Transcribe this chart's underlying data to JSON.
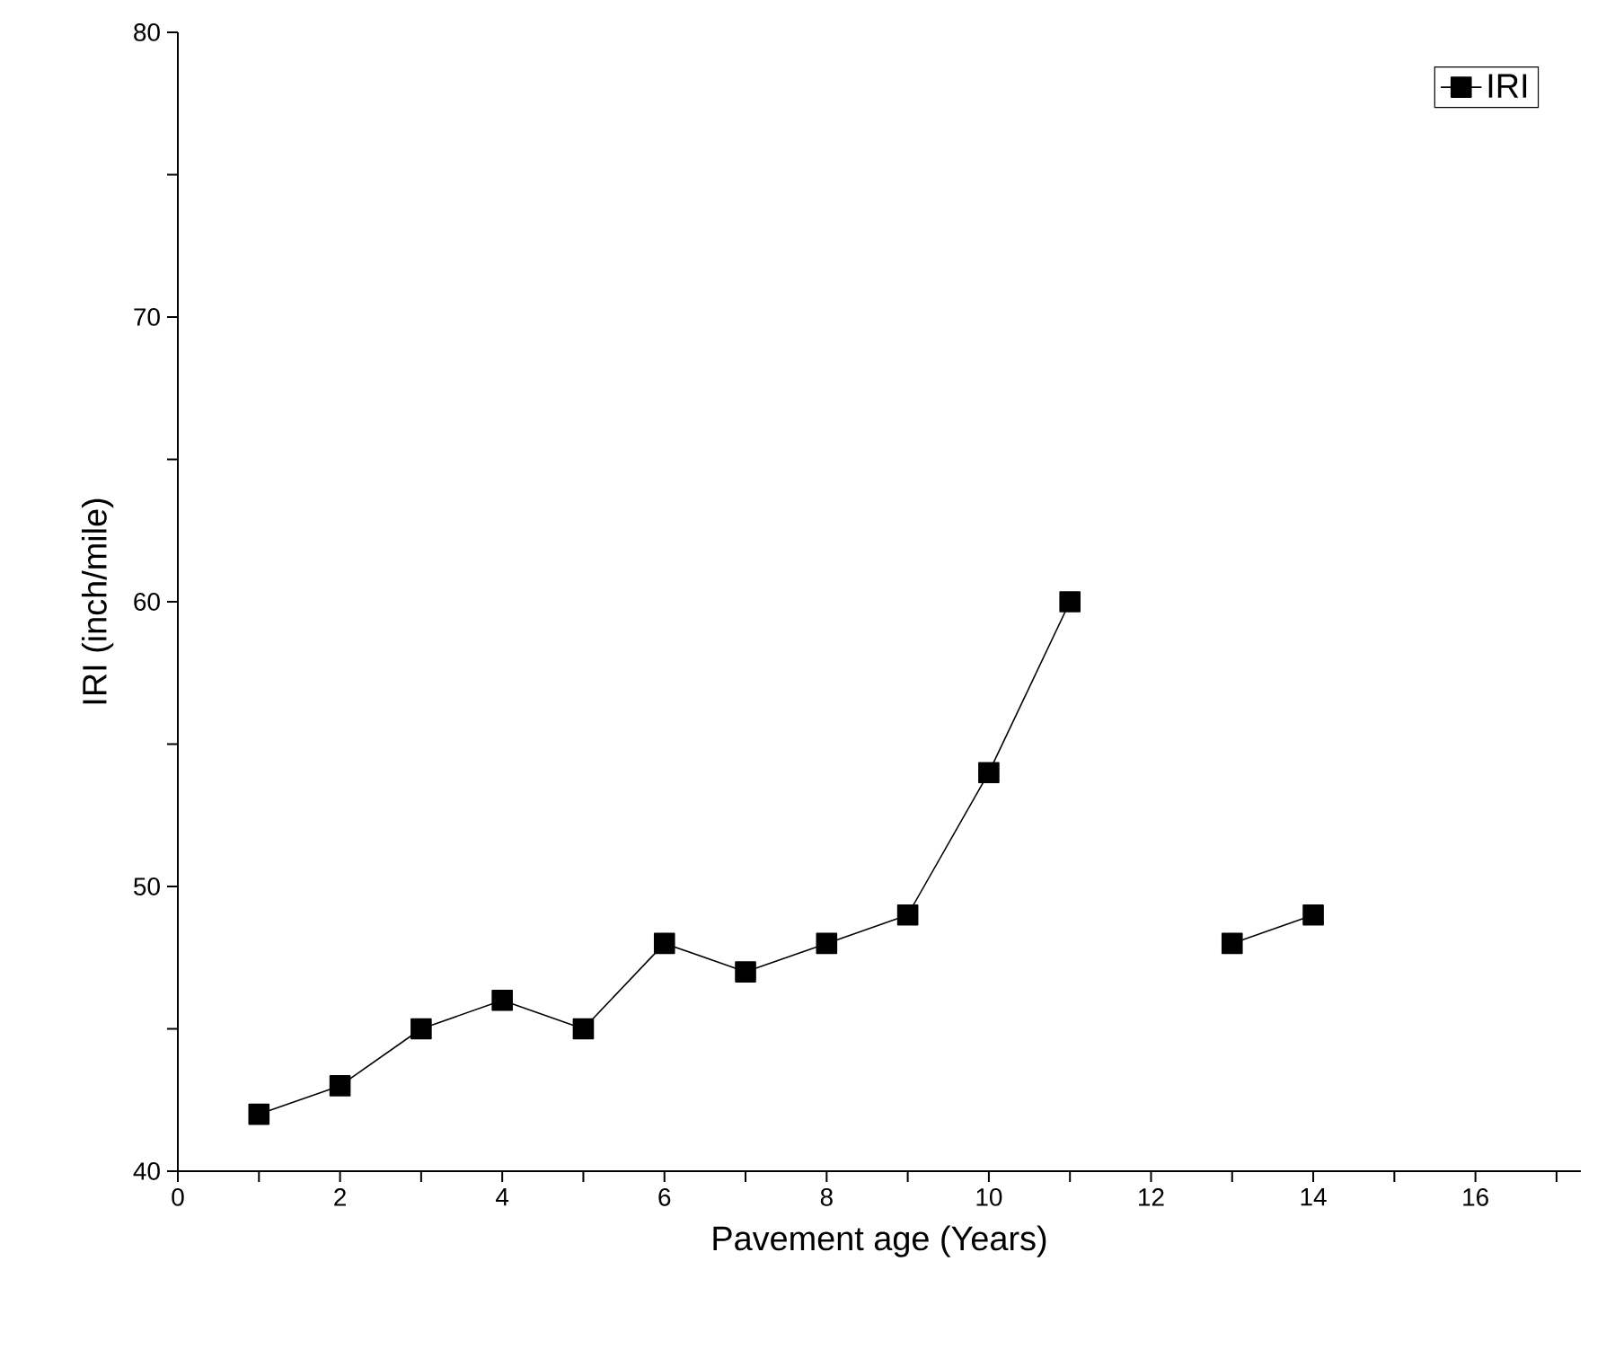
{
  "chart_data": {
    "type": "line",
    "xlabel": "Pavement age (Years)",
    "ylabel": "IRI (inch/mile)",
    "x": [
      1,
      2,
      3,
      4,
      5,
      6,
      7,
      8,
      9,
      10,
      11,
      12,
      13,
      14
    ],
    "series": [
      {
        "name": "IRI",
        "color": "#000000",
        "values": [
          42,
          43,
          45,
          46,
          45,
          48,
          47,
          48,
          49,
          54,
          60,
          null,
          48,
          49
        ]
      }
    ],
    "xlim": [
      0,
      17.3
    ],
    "ylim": [
      40,
      80
    ],
    "xticks": [
      0,
      {
        "value": 1,
        "label": null
      },
      2,
      {
        "value": 3,
        "label": null
      },
      4,
      {
        "value": 5,
        "label": null
      },
      6,
      {
        "value": 7,
        "label": null
      },
      8,
      {
        "value": 9,
        "label": null
      },
      10,
      {
        "value": 11,
        "label": null
      },
      12,
      {
        "value": 13,
        "label": null
      },
      14,
      {
        "value": 15,
        "label": null
      },
      16,
      {
        "value": 17,
        "label": null
      }
    ],
    "yticks": [
      40,
      {
        "value": 45,
        "label": null
      },
      50,
      {
        "value": 55,
        "label": null
      },
      60,
      {
        "value": 65,
        "label": null
      },
      70,
      {
        "value": 75,
        "label": null
      },
      80
    ],
    "marker": "square",
    "line_style": "solid",
    "legend": "top right",
    "grid": false
  }
}
